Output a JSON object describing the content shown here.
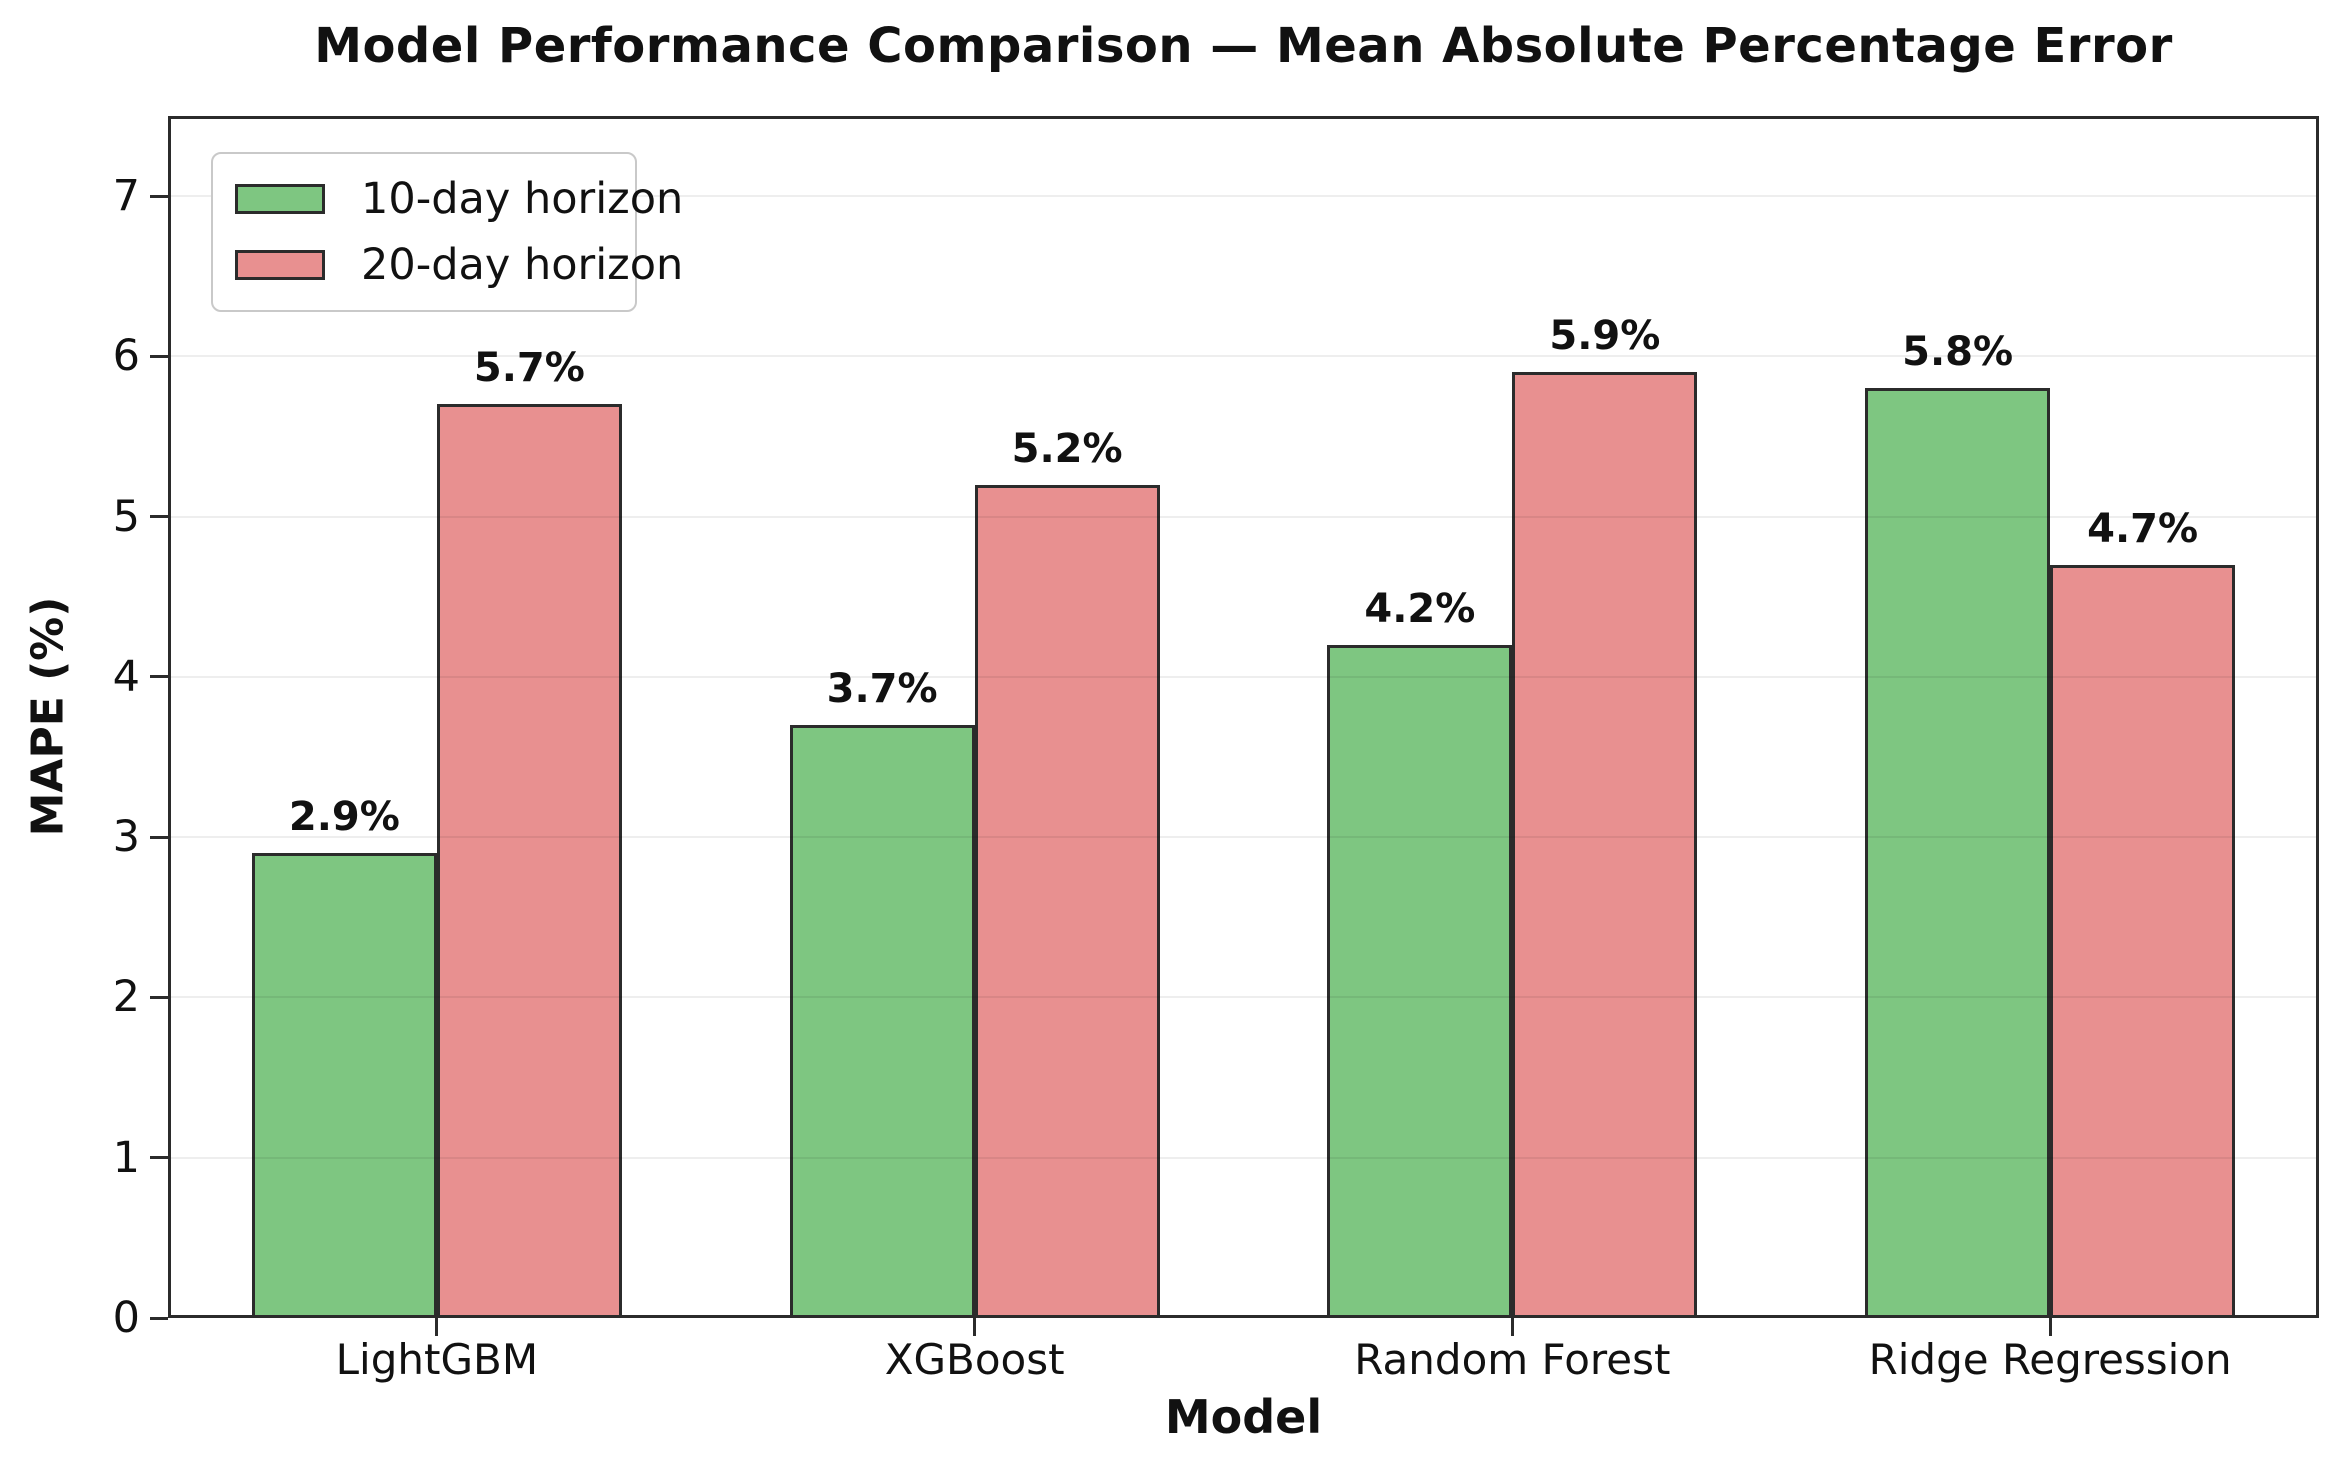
{
  "chart_data": {
    "type": "bar",
    "title": "Model Performance Comparison — Mean Absolute Percentage Error",
    "xlabel": "Model",
    "ylabel": "MAPE (%)",
    "categories": [
      "LightGBM",
      "XGBoost",
      "Random Forest",
      "Ridge Regression"
    ],
    "series": [
      {
        "name": "10-day horizon",
        "color": "#7ec681",
        "values": [
          2.9,
          3.7,
          4.2,
          5.8
        ],
        "labels": [
          "2.9%",
          "3.7%",
          "4.2%",
          "5.8%"
        ]
      },
      {
        "name": "20-day horizon",
        "color": "#e89090",
        "values": [
          5.7,
          5.2,
          5.9,
          4.7
        ],
        "labels": [
          "5.7%",
          "5.2%",
          "5.9%",
          "4.7%"
        ]
      }
    ],
    "ylim": [
      0,
      7.5
    ],
    "yticks": [
      "0",
      "1",
      "2",
      "3",
      "4",
      "5",
      "6",
      "7"
    ],
    "grid": "horizontal",
    "legend_position": "upper-left",
    "colors": {
      "bar_edge": "#2b2b2b",
      "spine": "#2b2b2b",
      "text": "#111111",
      "gridline": "rgba(0,0,0,0.065)",
      "background": "#ffffff"
    }
  }
}
